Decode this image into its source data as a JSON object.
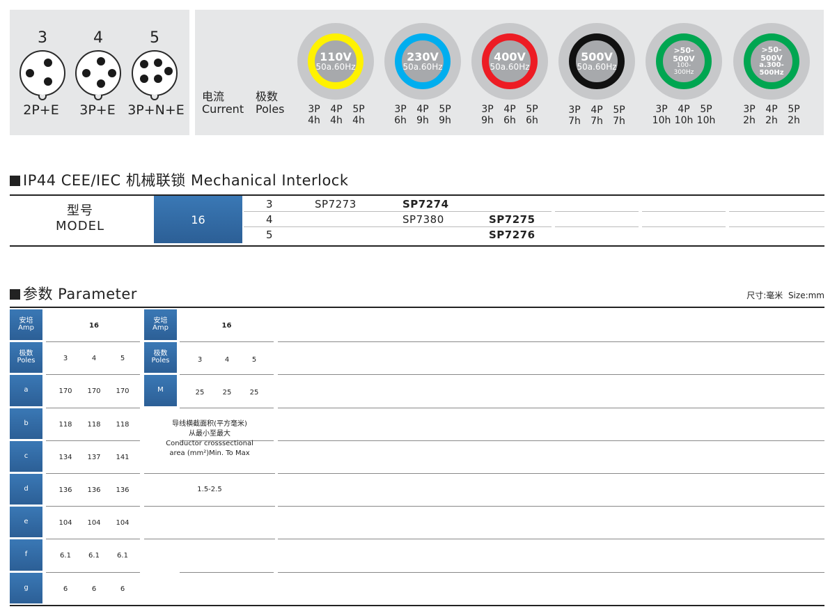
{
  "poles": [
    {
      "num": "3",
      "label": "2P+E"
    },
    {
      "num": "4",
      "label": "3P+E"
    },
    {
      "num": "5",
      "label": "3P+N+E"
    }
  ],
  "current_label": {
    "zh": "电流",
    "en": "Current"
  },
  "poles_label": {
    "zh": "极数",
    "en": "Poles"
  },
  "voltages": [
    {
      "ring_color": "#fff200",
      "line1": "110V",
      "line2": "50a.60Hz",
      "style": "normal",
      "table": [
        [
          "3P",
          "4P",
          "5P"
        ],
        [
          "4h",
          "4h",
          "4h"
        ]
      ]
    },
    {
      "ring_color": "#00aeef",
      "line1": "230V",
      "line2": "50a.60Hz",
      "style": "normal",
      "table": [
        [
          "3P",
          "4P",
          "5P"
        ],
        [
          "6h",
          "9h",
          "9h"
        ]
      ]
    },
    {
      "ring_color": "#ed1c24",
      "line1": "400V",
      "line2": "50a.60Hz",
      "style": "normal",
      "table": [
        [
          "3P",
          "4P",
          "5P"
        ],
        [
          "9h",
          "6h",
          "6h"
        ]
      ]
    },
    {
      "ring_color": "#111111",
      "line1": "500V",
      "line2": "50a.60Hz",
      "style": "normal",
      "table": [
        [
          "3P",
          "4P",
          "5P"
        ],
        [
          "7h",
          "7h",
          "7h"
        ]
      ]
    },
    {
      "ring_color": "#00a651",
      "line1": ">50-500V",
      "line2": "100-",
      "line3": "300Hz",
      "style": "small",
      "table": [
        [
          "3P",
          "4P",
          "5P"
        ],
        [
          "10h",
          "10h",
          "10h"
        ]
      ]
    },
    {
      "ring_color": "#00a651",
      "line1": ">50-500V",
      "line2": "a.300-",
      "line3": "500Hz",
      "style": "small2",
      "table": [
        [
          "3P",
          "4P",
          "5P"
        ],
        [
          "2h",
          "2h",
          "2h"
        ]
      ]
    }
  ],
  "section1": {
    "title": "IP44 CEE/IEC 机械联锁   Mechanical Interlock"
  },
  "model": {
    "label_zh": "型号",
    "label_en": "MODEL",
    "amp": "16",
    "rows": [
      {
        "poles": "3",
        "c1": "SP7273",
        "c2": "SP7274",
        "c3": ""
      },
      {
        "poles": "4",
        "c1": "",
        "c2": "SP7380",
        "c3": "SP7275"
      },
      {
        "poles": "5",
        "c1": "",
        "c2": "",
        "c3": "SP7276"
      }
    ]
  },
  "section2": {
    "title": "参数 Parameter",
    "size_note": "尺寸:毫米  Size:mm"
  },
  "param": {
    "left": [
      {
        "label_zh": "安培",
        "label_en": "Amp",
        "values": [
          "16"
        ]
      },
      {
        "label_zh": "极数",
        "label_en": "Poles",
        "values": [
          "3",
          "4",
          "5"
        ]
      },
      {
        "label_zh": "",
        "label_en": "a",
        "values": [
          "170",
          "170",
          "170"
        ]
      },
      {
        "label_zh": "",
        "label_en": "b",
        "values": [
          "118",
          "118",
          "118"
        ]
      },
      {
        "label_zh": "",
        "label_en": "c",
        "values": [
          "134",
          "137",
          "141"
        ]
      },
      {
        "label_zh": "",
        "label_en": "d",
        "values": [
          "136",
          "136",
          "136"
        ]
      },
      {
        "label_zh": "",
        "label_en": "e",
        "values": [
          "104",
          "104",
          "104"
        ]
      },
      {
        "label_zh": "",
        "label_en": "f",
        "values": [
          "6.1",
          "6.1",
          "6.1"
        ]
      },
      {
        "label_zh": "",
        "label_en": "g",
        "values": [
          "6",
          "6",
          "6"
        ]
      }
    ],
    "right": [
      {
        "label_zh": "安培",
        "label_en": "Amp",
        "values": [
          "16"
        ]
      },
      {
        "label_zh": "极数",
        "label_en": "Poles",
        "values": [
          "3",
          "4",
          "5"
        ]
      },
      {
        "label_zh": "",
        "label_en": "M",
        "values": [
          "25",
          "25",
          "25"
        ]
      }
    ],
    "conductor": {
      "zh1": "导线横截面积(平方毫米)",
      "zh2": "从最小至最大",
      "en1": "Conductor crosssectional",
      "en2": "area (mm²)Min. To Max",
      "value": "1.5-2.5"
    }
  }
}
